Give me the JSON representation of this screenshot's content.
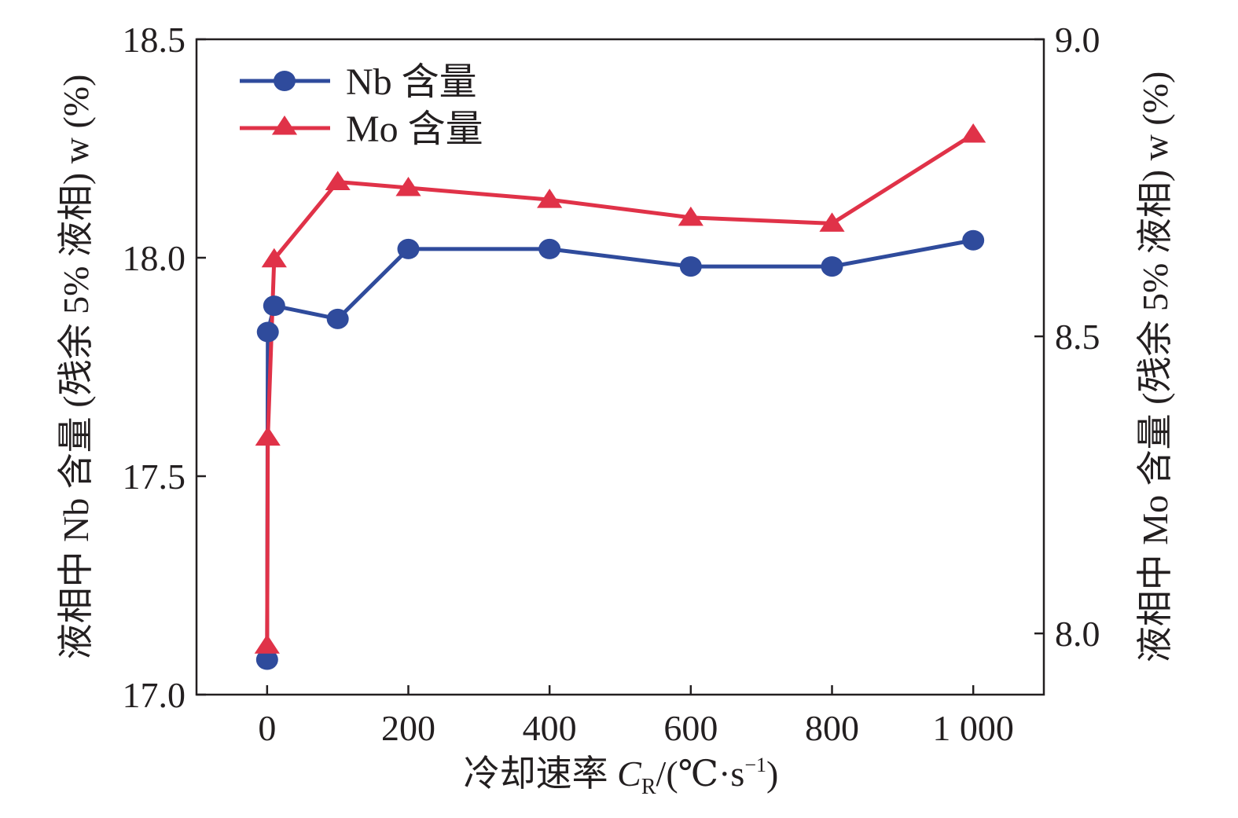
{
  "chart_data": {
    "type": "line",
    "title": "",
    "xlabel": "冷却速率 C_R/(℃·s⁻¹)",
    "xlabel_parts": {
      "main": "冷却速率 ",
      "var": "C",
      "sub": "R",
      "unit": "/(℃·s",
      "sup": "−1",
      "close": ")"
    },
    "ylabel_left": "液相中 Nb 含量 (残余 5% 液相) w (%)",
    "ylabel_right": "液相中 Mo 含量 (残余 5% 液相) w (%)",
    "xlim": [
      -100,
      1100
    ],
    "ylim_left": [
      17.0,
      18.5
    ],
    "ylim_right": [
      7.897,
      9.0
    ],
    "x_ticks": [
      0,
      200,
      400,
      600,
      800,
      1000
    ],
    "x_tick_labels": [
      "0",
      "200",
      "400",
      "600",
      "800",
      "1 000"
    ],
    "y_left_ticks": [
      17.0,
      17.5,
      18.0,
      18.5
    ],
    "y_left_tick_labels": [
      "17.0",
      "17.5",
      "18.0",
      "18.5"
    ],
    "y_right_ticks": [
      8.0,
      8.5,
      9.0
    ],
    "y_right_tick_labels": [
      "8.0",
      "8.5",
      "9.0"
    ],
    "legend_position": "top-left",
    "grid": false,
    "series": [
      {
        "name": "Nb 含量",
        "axis": "left",
        "color": "#2f4b9c",
        "marker": "circle",
        "x": [
          0,
          1,
          10,
          100,
          200,
          400,
          600,
          800,
          1000
        ],
        "values": [
          17.08,
          17.83,
          17.89,
          17.86,
          18.02,
          18.02,
          17.98,
          17.98,
          18.04
        ]
      },
      {
        "name": "Mo 含量",
        "axis": "right",
        "color": "#e03248",
        "marker": "triangle",
        "x": [
          0,
          1,
          10,
          100,
          200,
          400,
          600,
          800,
          1000
        ],
        "values": [
          7.98,
          8.33,
          8.63,
          8.76,
          8.75,
          8.73,
          8.7,
          8.69,
          8.84
        ]
      }
    ]
  }
}
